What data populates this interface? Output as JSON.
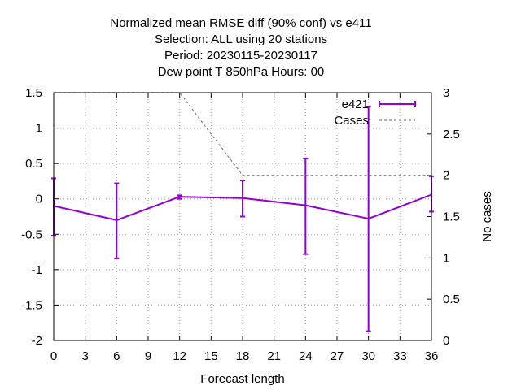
{
  "chart_data": {
    "type": "line",
    "title": [
      "Normalized mean RMSE diff (90% conf) vs e411",
      "Selection: ALL using    20 stations",
      "Period: 20230115-20230117",
      "Dew point T 850hPa   Hours:  00"
    ],
    "xlabel": "Forecast length",
    "ylabel": "",
    "y2label": "No cases",
    "xlim": [
      0,
      36
    ],
    "ylim": [
      -2,
      1.5
    ],
    "y2lim": [
      0,
      3
    ],
    "xticks": [
      0,
      3,
      6,
      9,
      12,
      15,
      18,
      21,
      24,
      27,
      30,
      33,
      36
    ],
    "yticks": [
      -2,
      -1.5,
      -1,
      -0.5,
      0,
      0.5,
      1,
      1.5
    ],
    "y2ticks": [
      0,
      0.5,
      1,
      1.5,
      2,
      2.5,
      3
    ],
    "grid": true,
    "legend_position": "top-right",
    "series": [
      {
        "name": "e421",
        "color": "#9400d3",
        "axis": "y",
        "style": "line-errorbars",
        "x": [
          0,
          6,
          12,
          18,
          24,
          30,
          36
        ],
        "y": [
          -0.1,
          -0.3,
          0.03,
          0.01,
          -0.09,
          -0.28,
          0.06
        ],
        "err_low": [
          -0.52,
          -0.84,
          0.0,
          -0.25,
          -0.78,
          -1.87,
          -0.18
        ],
        "err_high": [
          0.29,
          0.22,
          0.05,
          0.26,
          0.57,
          1.3,
          0.32
        ]
      },
      {
        "name": "Cases",
        "color": "#808080",
        "axis": "y2",
        "style": "dashed",
        "x": [
          0,
          6,
          12,
          18,
          24,
          30,
          36
        ],
        "y": [
          3,
          3,
          3,
          2,
          2,
          2,
          2
        ]
      }
    ]
  }
}
